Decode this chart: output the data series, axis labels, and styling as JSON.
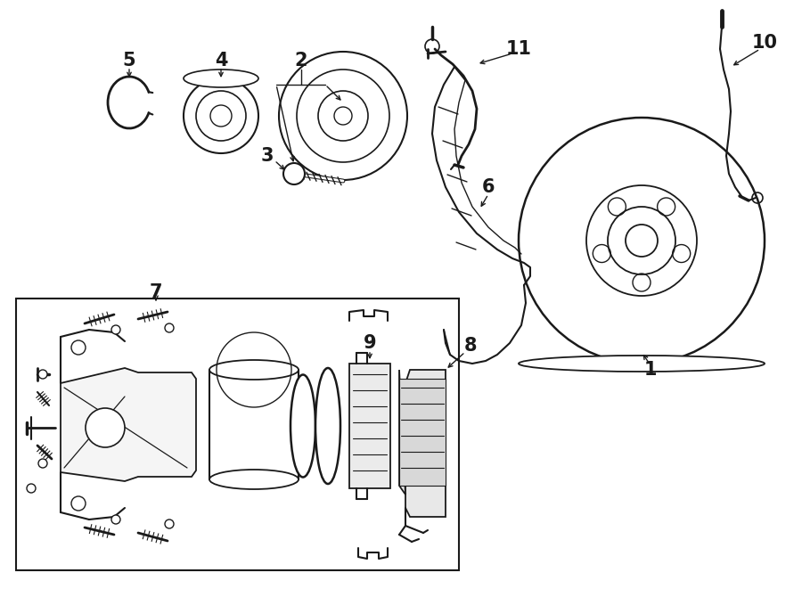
{
  "bg_color": "#ffffff",
  "line_color": "#1a1a1a",
  "fig_width": 9.0,
  "fig_height": 6.61,
  "dpi": 100,
  "label_fontsize": 15,
  "lw_main": 1.3,
  "lw_thick": 2.0,
  "lw_thin": 0.9
}
